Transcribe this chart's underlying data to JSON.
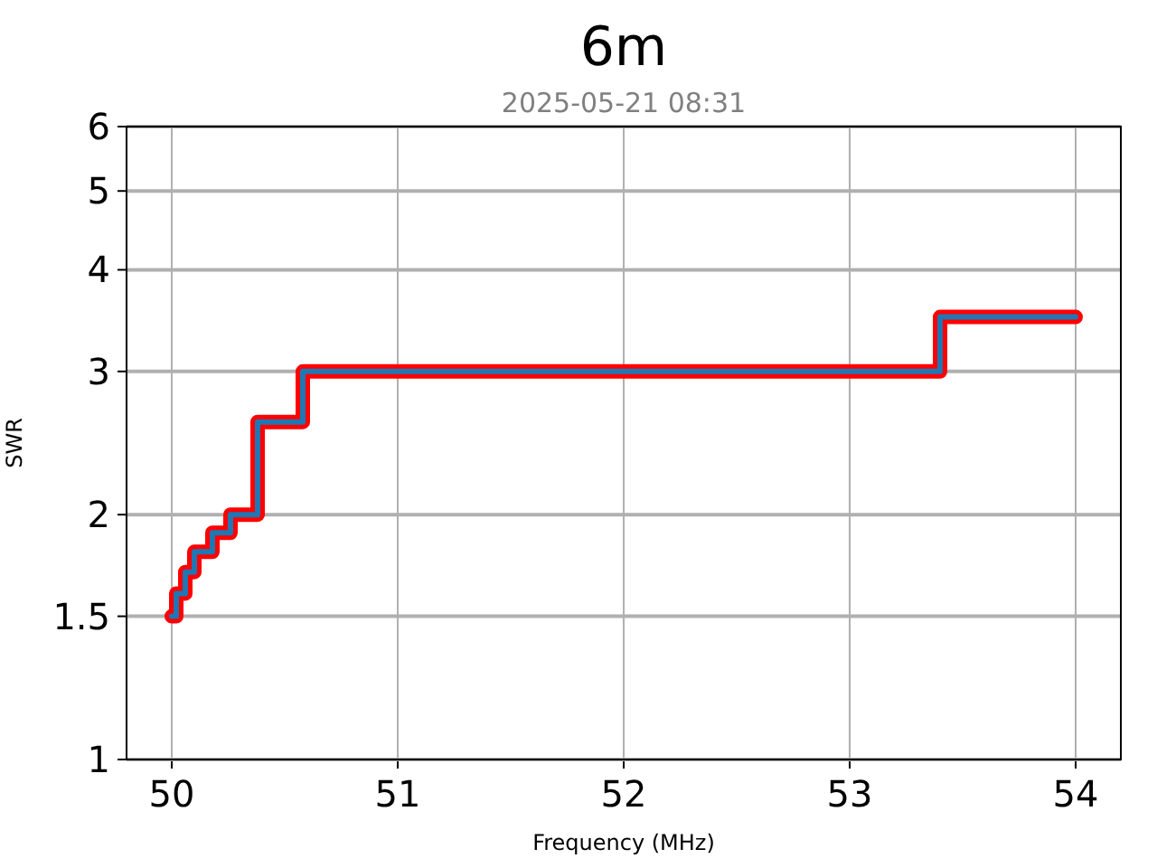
{
  "chart_data": {
    "type": "step",
    "title": "6m",
    "subtitle": "2025-05-21 08:31",
    "xlabel": "Frequency (MHz)",
    "ylabel": "SWR",
    "x": [
      50,
      50.02,
      50.06,
      50.1,
      50.18,
      50.26,
      50.38,
      50.58,
      53.4,
      54
    ],
    "series": [
      {
        "color": "#ff0000",
        "values": [
          1.5,
          1.6,
          1.7,
          1.8,
          1.9,
          2.0,
          2.6,
          3.0,
          3.5,
          3.5
        ]
      },
      {
        "color": "#1f77b4",
        "values": [
          1.5,
          1.6,
          1.7,
          1.8,
          1.9,
          2.0,
          2.6,
          3.0,
          3.5,
          3.5
        ]
      }
    ],
    "xlim": [
      49.8,
      54.2
    ],
    "xticks": [
      50,
      51,
      52,
      53,
      54
    ],
    "ylim": [
      1,
      6
    ],
    "yticks": [
      1,
      1.5,
      2,
      3,
      4,
      5,
      6
    ],
    "log": true,
    "grid": true,
    "line_style": "solid",
    "marker": "none"
  }
}
